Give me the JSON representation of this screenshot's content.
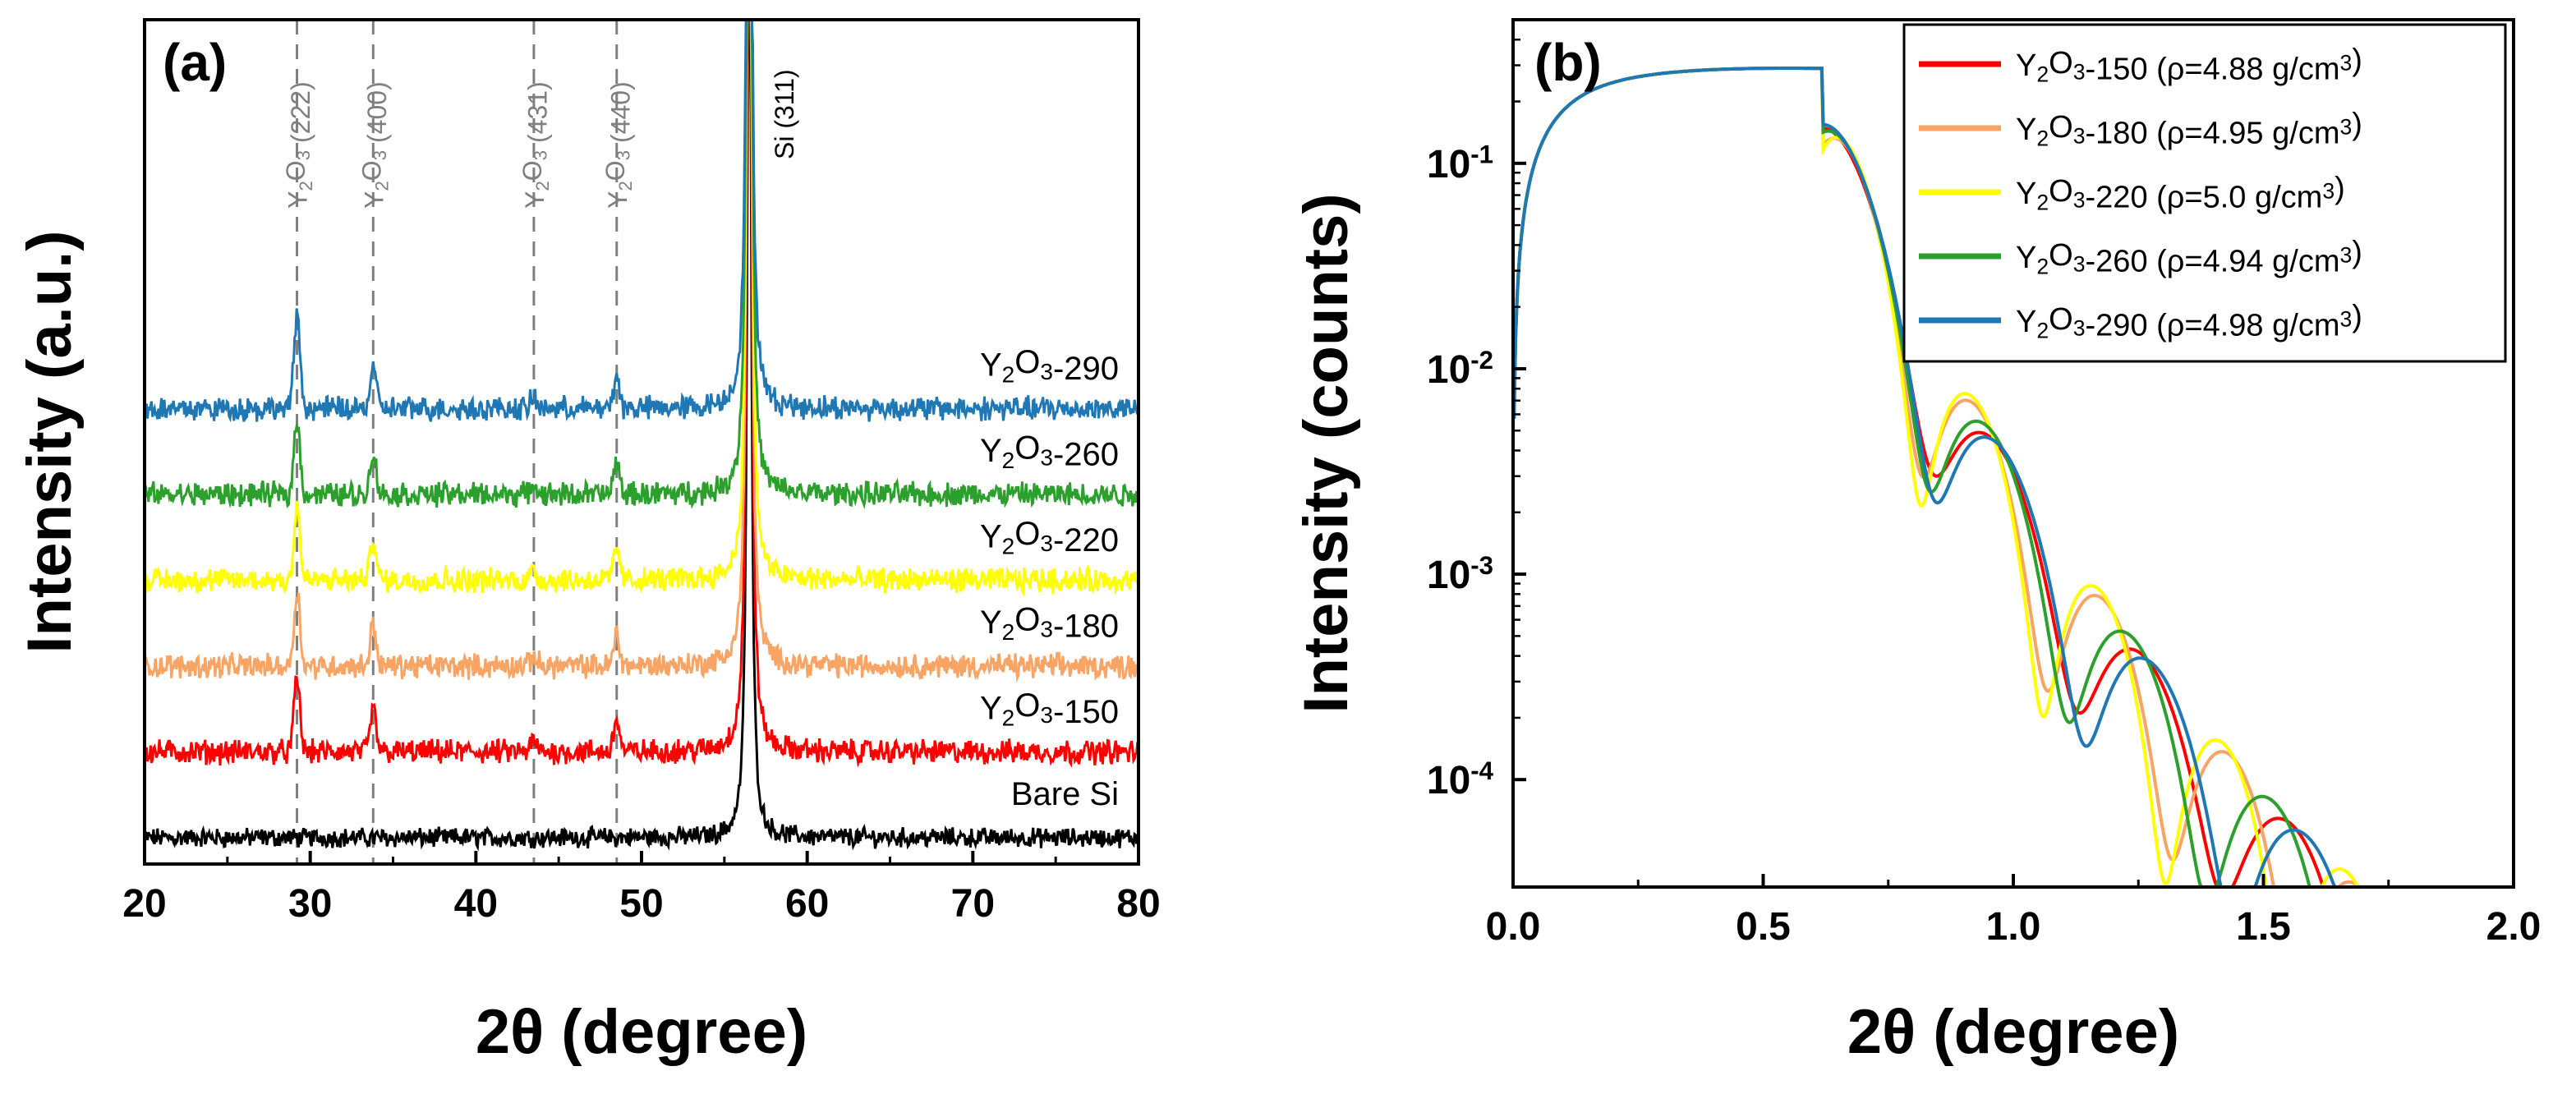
{
  "chart_data": [
    {
      "panel": "(a)",
      "type": "line",
      "xlabel": "2θ (degree)",
      "ylabel": "Intensity (a.u.)",
      "xlim": [
        20,
        80
      ],
      "xticks": [
        20,
        30,
        40,
        50,
        60,
        70,
        80
      ],
      "yticks_shown": false,
      "stacked": true,
      "series": [
        {
          "name": "Bare Si",
          "color": "#000000",
          "offset": 0,
          "noise": 4,
          "peak_heights": [
            0,
            0,
            0,
            0
          ],
          "si_peak": 650
        },
        {
          "name": "Y2O3-150",
          "color": "#ff0000",
          "offset": 1.1,
          "noise": 5,
          "peak_heights": [
            7,
            4,
            1,
            3
          ],
          "si_peak": 800
        },
        {
          "name": "Y2O3-180",
          "color": "#f7a464",
          "offset": 2.2,
          "noise": 5,
          "peak_heights": [
            7,
            4,
            1,
            3
          ],
          "si_peak": 800
        },
        {
          "name": "Y2O3-220",
          "color": "#ffff00",
          "offset": 3.3,
          "noise": 5,
          "peak_heights": [
            7,
            4,
            1,
            3
          ],
          "si_peak": 800
        },
        {
          "name": "Y2O3-260",
          "color": "#2ca02c",
          "offset": 4.4,
          "noise": 5,
          "peak_heights": [
            7,
            4,
            1,
            3
          ],
          "si_peak": 800
        },
        {
          "name": "Y2O3-290",
          "color": "#1f77b4",
          "offset": 5.5,
          "noise": 5,
          "peak_heights": [
            9,
            4,
            1,
            3
          ],
          "si_peak": 800
        }
      ],
      "reference_peaks": [
        {
          "label": "Y2O3 (222)",
          "position": 29.2
        },
        {
          "label": "Y2O3 (400)",
          "position": 33.8
        },
        {
          "label": "Y2O3 (431)",
          "position": 43.5
        },
        {
          "label": "Y2O3 (440)",
          "position": 48.5
        }
      ],
      "substrate_peak": {
        "label": "Si (311)",
        "position": 56.5
      }
    },
    {
      "panel": "(b)",
      "type": "line",
      "xlabel": "2θ (degree)",
      "ylabel": "Intensity (counts)",
      "xlim": [
        0,
        2.0
      ],
      "ylim": [
        3e-05,
        0.5
      ],
      "yscale": "log",
      "xticks": [
        "0.0",
        "0.5",
        "1.0",
        "1.5",
        "2.0"
      ],
      "yticks": [
        0.1,
        0.01,
        0.001,
        0.0001
      ],
      "ytick_labels": [
        "10",
        "10",
        "10",
        "10"
      ],
      "ytick_exponents": [
        "-1",
        "-2",
        "-3",
        "-4"
      ],
      "critical_angle": 0.62,
      "plateau": 0.26,
      "first_min": 0.69,
      "legend_position": "top-right",
      "series": [
        {
          "name": "Y2O3-150 (ρ=4.88 g/cm3)",
          "color": "#ff0000",
          "fringe_period": 0.29,
          "amp": 0.45
        },
        {
          "name": "Y2O3-180 (ρ=4.95 g/cm3)",
          "color": "#f7a464",
          "fringe_period": 0.25,
          "amp": 0.5
        },
        {
          "name": "Y2O3-220 (ρ=5.0 g/cm3)",
          "color": "#ffff00",
          "fringe_period": 0.245,
          "amp": 0.55
        },
        {
          "name": "Y2O3-260 (ρ=4.94 g/cm3)",
          "color": "#2ca02c",
          "fringe_period": 0.278,
          "amp": 0.5
        },
        {
          "name": "Y2O3-290 (ρ=4.98 g/cm3)",
          "color": "#1f77b4",
          "fringe_period": 0.3,
          "amp": 0.5
        }
      ]
    }
  ]
}
